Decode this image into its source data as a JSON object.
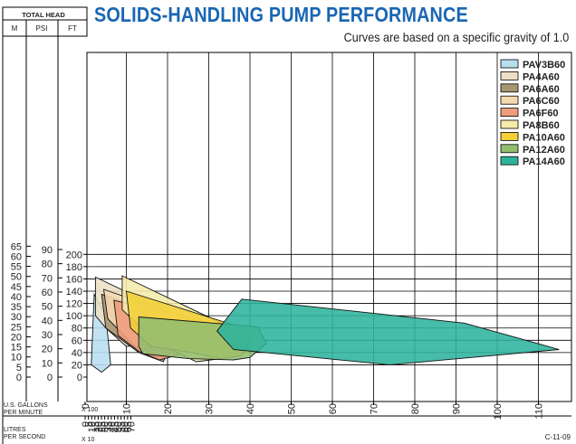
{
  "header": {
    "title": "SOLIDS-HANDLING PUMP PERFORMANCE",
    "subtitle": "Curves are based on a specific gravity of 1.0",
    "code": "C-11-09"
  },
  "axes_labels": {
    "total_head": "TOTAL HEAD",
    "unit_m": "M",
    "unit_psi": "PSI",
    "unit_ft": "FT",
    "gpm_label_1": "U.S. GALLONS",
    "gpm_label_2": "PER MINUTE",
    "gpm_multiplier": "X 100",
    "lps_label_1": "LITRES",
    "lps_label_2": "PER SECOND",
    "lps_multiplier": "X 10"
  },
  "colors": {
    "title": "#1a66b3",
    "grid": "#000000"
  },
  "chart_data": {
    "type": "area",
    "title": "SOLIDS-HANDLING PUMP PERFORMANCE",
    "subtitle": "Curves are based on a specific gravity of 1.0",
    "x_unit": "U.S. GALLONS PER MINUTE X 100",
    "y_unit": "FT",
    "xlim": [
      0,
      120
    ],
    "ylim": [
      0,
      220
    ],
    "grid": true,
    "legend_position": "top-right",
    "axes": {
      "ft_ticks": [
        0,
        20,
        40,
        60,
        80,
        100,
        120,
        140,
        160,
        180,
        200
      ],
      "gpm_ticks": [
        0,
        10,
        20,
        30,
        40,
        50,
        60,
        70,
        80,
        90,
        100,
        110
      ],
      "m_ticks": [
        0,
        5,
        10,
        15,
        20,
        25,
        30,
        35,
        40,
        45,
        50,
        55,
        60,
        65
      ],
      "psi_ticks": [
        0,
        10,
        20,
        30,
        40,
        50,
        60,
        70,
        80,
        90
      ],
      "lps_ticks": [
        0,
        5,
        10,
        15,
        20,
        25,
        30,
        35,
        40,
        45,
        50,
        55,
        60,
        65,
        70
      ]
    },
    "series": [
      {
        "name": "PAV3B60",
        "color": "#b8def0",
        "points": [
          [
            1.5,
            20
          ],
          [
            2.2,
            135
          ],
          [
            5,
            100
          ],
          [
            6.2,
            20
          ],
          [
            4,
            8
          ]
        ]
      },
      {
        "name": "PA4A60",
        "color": "#ece0c6",
        "points": [
          [
            2.5,
            163
          ],
          [
            22,
            100
          ],
          [
            13,
            52
          ],
          [
            10,
            50
          ],
          [
            5,
            80
          ],
          [
            2.5,
            100
          ]
        ]
      },
      {
        "name": "PA6A60",
        "color": "#a89470",
        "points": [
          [
            4,
            135
          ],
          [
            17,
            105
          ],
          [
            21,
            55
          ],
          [
            19,
            25
          ],
          [
            13,
            40
          ],
          [
            5,
            80
          ]
        ]
      },
      {
        "name": "PA6C60",
        "color": "#f6d8b0",
        "points": [
          [
            4.5,
            143
          ],
          [
            23,
            100
          ],
          [
            26,
            85
          ],
          [
            22,
            52
          ],
          [
            19,
            35
          ],
          [
            12,
            50
          ],
          [
            5.5,
            95
          ]
        ]
      },
      {
        "name": "PA6F60",
        "color": "#ef9c7c",
        "points": [
          [
            7,
            125
          ],
          [
            28,
            94
          ],
          [
            25,
            45
          ],
          [
            22,
            35
          ],
          [
            18,
            28
          ],
          [
            13,
            42
          ],
          [
            8,
            68
          ]
        ]
      },
      {
        "name": "PA8B60",
        "color": "#f5ebaa",
        "points": [
          [
            9,
            165
          ],
          [
            33,
            88
          ],
          [
            38,
            60
          ],
          [
            33,
            30
          ],
          [
            27,
            25
          ],
          [
            23,
            38
          ],
          [
            17,
            60
          ],
          [
            9,
            110
          ]
        ]
      },
      {
        "name": "PA10A60",
        "color": "#f3cf38",
        "points": [
          [
            10,
            140
          ],
          [
            36,
            85
          ],
          [
            40,
            58
          ],
          [
            38,
            35
          ],
          [
            33,
            30
          ],
          [
            26,
            40
          ],
          [
            16,
            50
          ],
          [
            11,
            80
          ]
        ]
      },
      {
        "name": "PA12A60",
        "color": "#93bd70",
        "points": [
          [
            13,
            98
          ],
          [
            42,
            82
          ],
          [
            44,
            55
          ],
          [
            40,
            32
          ],
          [
            36,
            28
          ],
          [
            25,
            30
          ],
          [
            14,
            38
          ],
          [
            13,
            50
          ]
        ]
      },
      {
        "name": "PA14A60",
        "color": "#2db39c",
        "points": [
          [
            38,
            127
          ],
          [
            92,
            88
          ],
          [
            115,
            45
          ],
          [
            74,
            20
          ],
          [
            36,
            45
          ],
          [
            32,
            75
          ]
        ]
      }
    ]
  }
}
